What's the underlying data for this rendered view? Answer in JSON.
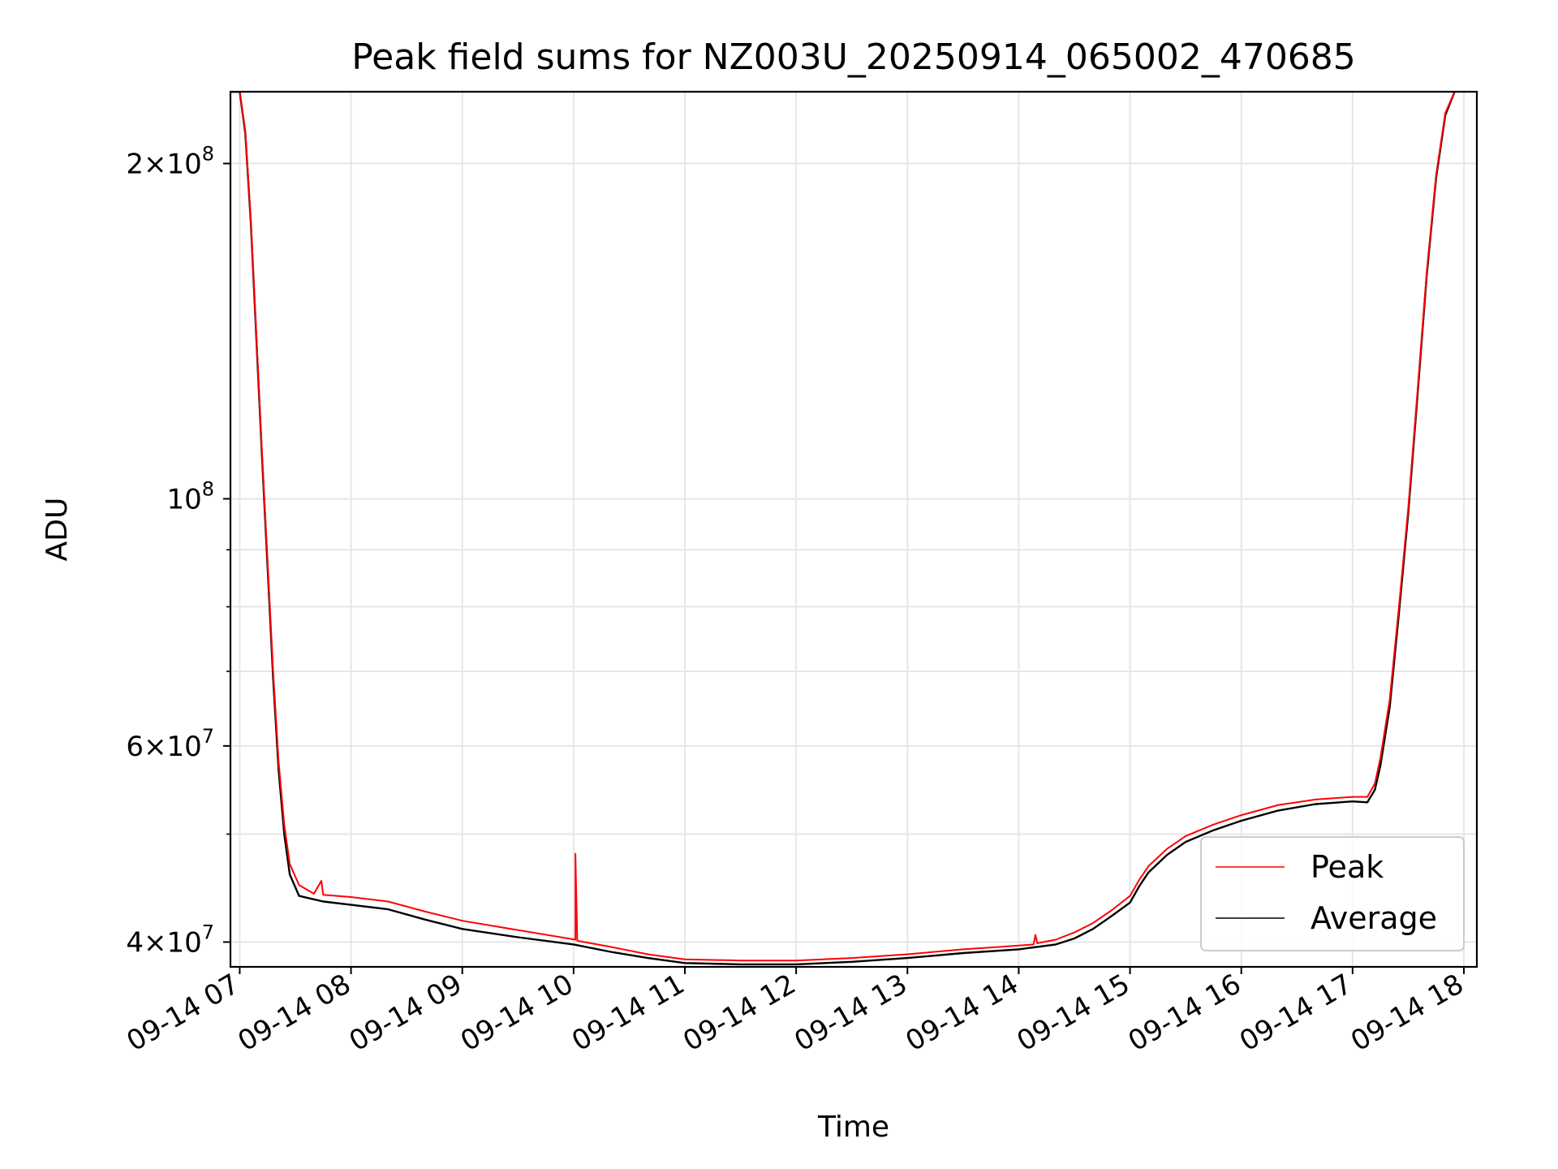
{
  "chart_data": {
    "type": "line",
    "title": "Peak field sums for NZ003U_20250914_065002_470685",
    "xlabel": "Time",
    "ylabel": "ADU",
    "y_scale": "log",
    "ylim": [
      38000000,
      232000000
    ],
    "xlim": [
      "2025-09-14 06:55",
      "2025-09-14 18:07"
    ],
    "grid": true,
    "legend_position": "lower-right",
    "x_ticks": [
      {
        "t": "2025-09-14 07:00",
        "label": "09-14 07"
      },
      {
        "t": "2025-09-14 08:00",
        "label": "09-14 08"
      },
      {
        "t": "2025-09-14 09:00",
        "label": "09-14 09"
      },
      {
        "t": "2025-09-14 10:00",
        "label": "09-14 10"
      },
      {
        "t": "2025-09-14 11:00",
        "label": "09-14 11"
      },
      {
        "t": "2025-09-14 12:00",
        "label": "09-14 12"
      },
      {
        "t": "2025-09-14 13:00",
        "label": "09-14 13"
      },
      {
        "t": "2025-09-14 14:00",
        "label": "09-14 14"
      },
      {
        "t": "2025-09-14 15:00",
        "label": "09-14 15"
      },
      {
        "t": "2025-09-14 16:00",
        "label": "09-14 16"
      },
      {
        "t": "2025-09-14 17:00",
        "label": "09-14 17"
      },
      {
        "t": "2025-09-14 18:00",
        "label": "09-14 18"
      }
    ],
    "y_major_ticks": [
      {
        "value": 40000000,
        "mantissa": "4",
        "exponent": "7"
      },
      {
        "value": 60000000,
        "mantissa": "6",
        "exponent": "7"
      },
      {
        "value": 100000000,
        "mantissa": "",
        "exponent": "8"
      },
      {
        "value": 200000000,
        "mantissa": "2",
        "exponent": "8"
      }
    ],
    "y_minor_ticks": [
      50000000,
      70000000,
      80000000,
      90000000
    ],
    "series": [
      {
        "name": "Peak",
        "color": "#ff0000",
        "points": [
          [
            "2025-09-14 06:55",
            232000000
          ],
          [
            "2025-09-14 07:00",
            232000000
          ],
          [
            "2025-09-14 07:03",
            214000000
          ],
          [
            "2025-09-14 07:06",
            178000000
          ],
          [
            "2025-09-14 07:09",
            140000000
          ],
          [
            "2025-09-14 07:12",
            110000000
          ],
          [
            "2025-09-14 07:15",
            88000000
          ],
          [
            "2025-09-14 07:18",
            70000000
          ],
          [
            "2025-09-14 07:21",
            58000000
          ],
          [
            "2025-09-14 07:24",
            51000000
          ],
          [
            "2025-09-14 07:27",
            47000000
          ],
          [
            "2025-09-14 07:32",
            45000000
          ],
          [
            "2025-09-14 07:40",
            44200000
          ],
          [
            "2025-09-14 07:44",
            45400000
          ],
          [
            "2025-09-14 07:45",
            44100000
          ],
          [
            "2025-09-14 08:00",
            43900000
          ],
          [
            "2025-09-14 08:20",
            43500000
          ],
          [
            "2025-09-14 08:40",
            42600000
          ],
          [
            "2025-09-14 09:00",
            41800000
          ],
          [
            "2025-09-14 09:30",
            41000000
          ],
          [
            "2025-09-14 10:01",
            40200000
          ],
          [
            "2025-09-14 10:01",
            48000000
          ],
          [
            "2025-09-14 10:02",
            40100000
          ],
          [
            "2025-09-14 10:20",
            39600000
          ],
          [
            "2025-09-14 10:40",
            39000000
          ],
          [
            "2025-09-14 11:00",
            38600000
          ],
          [
            "2025-09-14 11:30",
            38500000
          ],
          [
            "2025-09-14 12:00",
            38500000
          ],
          [
            "2025-09-14 12:30",
            38700000
          ],
          [
            "2025-09-14 13:00",
            39000000
          ],
          [
            "2025-09-14 13:30",
            39400000
          ],
          [
            "2025-09-14 13:50",
            39600000
          ],
          [
            "2025-09-14 14:08",
            39800000
          ],
          [
            "2025-09-14 14:09",
            40600000
          ],
          [
            "2025-09-14 14:10",
            39900000
          ],
          [
            "2025-09-14 14:20",
            40200000
          ],
          [
            "2025-09-14 14:30",
            40800000
          ],
          [
            "2025-09-14 14:40",
            41600000
          ],
          [
            "2025-09-14 14:50",
            42700000
          ],
          [
            "2025-09-14 15:00",
            44000000
          ],
          [
            "2025-09-14 15:05",
            45500000
          ],
          [
            "2025-09-14 15:10",
            46800000
          ],
          [
            "2025-09-14 15:20",
            48500000
          ],
          [
            "2025-09-14 15:30",
            49800000
          ],
          [
            "2025-09-14 15:45",
            51000000
          ],
          [
            "2025-09-14 16:00",
            52000000
          ],
          [
            "2025-09-14 16:20",
            53100000
          ],
          [
            "2025-09-14 16:40",
            53700000
          ],
          [
            "2025-09-14 17:00",
            54000000
          ],
          [
            "2025-09-14 17:08",
            54000000
          ],
          [
            "2025-09-14 17:12",
            55500000
          ],
          [
            "2025-09-14 17:15",
            58500000
          ],
          [
            "2025-09-14 17:20",
            66000000
          ],
          [
            "2025-09-14 17:25",
            80000000
          ],
          [
            "2025-09-14 17:30",
            98000000
          ],
          [
            "2025-09-14 17:35",
            125000000
          ],
          [
            "2025-09-14 17:40",
            160000000
          ],
          [
            "2025-09-14 17:45",
            195000000
          ],
          [
            "2025-09-14 17:50",
            222000000
          ],
          [
            "2025-09-14 17:55",
            232000000
          ]
        ]
      },
      {
        "name": "Average",
        "color": "#000000",
        "points": [
          [
            "2025-09-14 06:55",
            232000000
          ],
          [
            "2025-09-14 07:00",
            232000000
          ],
          [
            "2025-09-14 07:03",
            213000000
          ],
          [
            "2025-09-14 07:06",
            177000000
          ],
          [
            "2025-09-14 07:09",
            139000000
          ],
          [
            "2025-09-14 07:12",
            109000000
          ],
          [
            "2025-09-14 07:15",
            87000000
          ],
          [
            "2025-09-14 07:18",
            69000000
          ],
          [
            "2025-09-14 07:21",
            57000000
          ],
          [
            "2025-09-14 07:24",
            50000000
          ],
          [
            "2025-09-14 07:27",
            46000000
          ],
          [
            "2025-09-14 07:32",
            44000000
          ],
          [
            "2025-09-14 07:45",
            43500000
          ],
          [
            "2025-09-14 08:00",
            43200000
          ],
          [
            "2025-09-14 08:20",
            42800000
          ],
          [
            "2025-09-14 08:40",
            41900000
          ],
          [
            "2025-09-14 09:00",
            41100000
          ],
          [
            "2025-09-14 09:30",
            40400000
          ],
          [
            "2025-09-14 10:00",
            39800000
          ],
          [
            "2025-09-14 10:20",
            39200000
          ],
          [
            "2025-09-14 10:40",
            38700000
          ],
          [
            "2025-09-14 11:00",
            38300000
          ],
          [
            "2025-09-14 11:30",
            38200000
          ],
          [
            "2025-09-14 12:00",
            38200000
          ],
          [
            "2025-09-14 12:30",
            38400000
          ],
          [
            "2025-09-14 13:00",
            38700000
          ],
          [
            "2025-09-14 13:30",
            39100000
          ],
          [
            "2025-09-14 14:00",
            39400000
          ],
          [
            "2025-09-14 14:20",
            39800000
          ],
          [
            "2025-09-14 14:30",
            40300000
          ],
          [
            "2025-09-14 14:40",
            41100000
          ],
          [
            "2025-09-14 14:50",
            42200000
          ],
          [
            "2025-09-14 15:00",
            43400000
          ],
          [
            "2025-09-14 15:05",
            44900000
          ],
          [
            "2025-09-14 15:10",
            46200000
          ],
          [
            "2025-09-14 15:20",
            47900000
          ],
          [
            "2025-09-14 15:30",
            49200000
          ],
          [
            "2025-09-14 15:45",
            50400000
          ],
          [
            "2025-09-14 16:00",
            51400000
          ],
          [
            "2025-09-14 16:20",
            52500000
          ],
          [
            "2025-09-14 16:40",
            53200000
          ],
          [
            "2025-09-14 17:00",
            53500000
          ],
          [
            "2025-09-14 17:08",
            53400000
          ],
          [
            "2025-09-14 17:12",
            54800000
          ],
          [
            "2025-09-14 17:15",
            57600000
          ],
          [
            "2025-09-14 17:20",
            65000000
          ],
          [
            "2025-09-14 17:25",
            79000000
          ],
          [
            "2025-09-14 17:30",
            97000000
          ],
          [
            "2025-09-14 17:35",
            124000000
          ],
          [
            "2025-09-14 17:40",
            159000000
          ],
          [
            "2025-09-14 17:45",
            194000000
          ],
          [
            "2025-09-14 17:50",
            221000000
          ],
          [
            "2025-09-14 17:55",
            232000000
          ]
        ]
      }
    ]
  }
}
